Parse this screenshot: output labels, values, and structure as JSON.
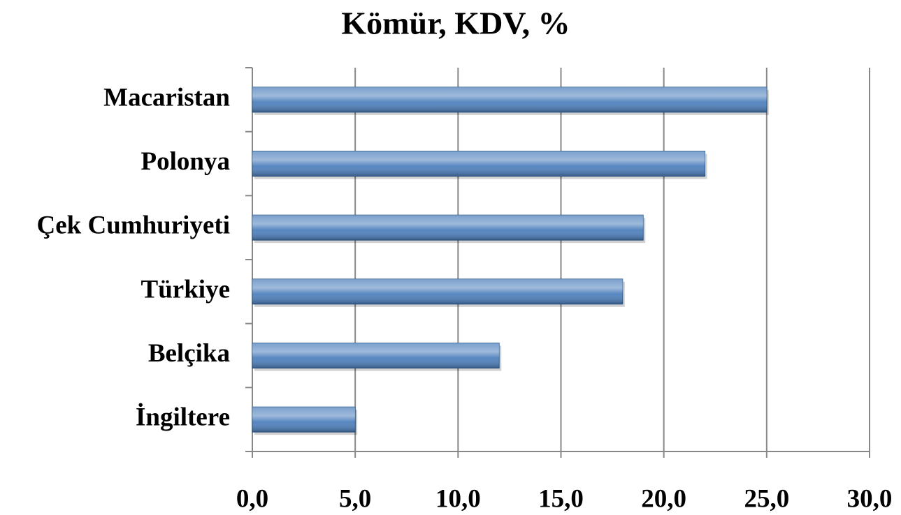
{
  "chart_data": {
    "type": "bar",
    "orientation": "horizontal",
    "title": "Kömür, KDV, %",
    "categories": [
      "Macaristan",
      "Polonya",
      "Çek Cumhuriyeti",
      "Türkiye",
      "Belçika",
      "İngiltere"
    ],
    "values": [
      25,
      22,
      19,
      18,
      12,
      5
    ],
    "color": "#4f81bd",
    "xlim": [
      0,
      30
    ],
    "xticks": [
      {
        "value": 0,
        "label": "0,0"
      },
      {
        "value": 5,
        "label": "5,0"
      },
      {
        "value": 10,
        "label": "10,0"
      },
      {
        "value": 15,
        "label": "15,0"
      },
      {
        "value": 20,
        "label": "20,0"
      },
      {
        "value": 25,
        "label": "25,0"
      },
      {
        "value": 30,
        "label": "30,0"
      }
    ],
    "grid": true
  }
}
